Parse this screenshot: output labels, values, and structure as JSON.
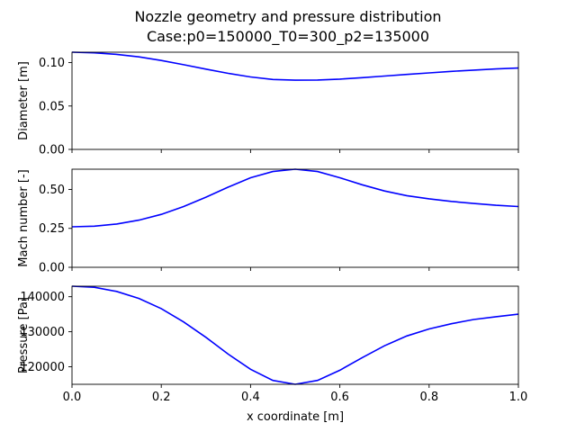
{
  "figure": {
    "title_line1": "Nozzle geometry and pressure distribution",
    "title_line2": "Case:p0=150000_T0=300_p2=135000"
  },
  "chart_data": [
    {
      "type": "line",
      "ylabel": "Diameter [m]",
      "xlim": [
        0,
        1
      ],
      "ylim": [
        0,
        0.112
      ],
      "yticks": [
        0.0,
        0.05,
        0.1
      ],
      "ytick_labels": [
        "0.00",
        "0.05",
        "0.10"
      ],
      "line_color": "#0000ff",
      "series": [
        {
          "x": [
            0,
            0.05,
            0.1,
            0.15,
            0.2,
            0.25,
            0.3,
            0.35,
            0.4,
            0.45,
            0.5,
            0.55,
            0.6,
            0.65,
            0.7,
            0.75,
            0.8,
            0.85,
            0.9,
            0.95,
            1.0
          ],
          "values": [
            0.112,
            0.1113,
            0.1095,
            0.1066,
            0.1025,
            0.0976,
            0.0925,
            0.0876,
            0.0835,
            0.0806,
            0.0797,
            0.08,
            0.081,
            0.0826,
            0.0845,
            0.0864,
            0.0882,
            0.0899,
            0.0914,
            0.0927,
            0.0938
          ]
        }
      ]
    },
    {
      "type": "line",
      "ylabel": "Mach number [-]",
      "xlim": [
        0,
        1
      ],
      "ylim": [
        0,
        0.63
      ],
      "yticks": [
        0.0,
        0.25,
        0.5
      ],
      "ytick_labels": [
        "0.00",
        "0.25",
        "0.50"
      ],
      "line_color": "#0000ff",
      "series": [
        {
          "x": [
            0,
            0.05,
            0.1,
            0.15,
            0.2,
            0.25,
            0.3,
            0.35,
            0.4,
            0.45,
            0.5,
            0.55,
            0.6,
            0.65,
            0.7,
            0.75,
            0.8,
            0.85,
            0.9,
            0.95,
            1.0
          ],
          "values": [
            0.26,
            0.264,
            0.278,
            0.303,
            0.34,
            0.39,
            0.45,
            0.515,
            0.575,
            0.615,
            0.63,
            0.615,
            0.575,
            0.53,
            0.49,
            0.46,
            0.44,
            0.423,
            0.41,
            0.398,
            0.39
          ]
        }
      ]
    },
    {
      "type": "line",
      "ylabel": "Pressure [Pa]",
      "xlabel": "x coordinate [m]",
      "xlim": [
        0,
        1
      ],
      "ylim": [
        115000,
        143000
      ],
      "yticks": [
        120000,
        130000,
        140000
      ],
      "ytick_labels": [
        "120000",
        "130000",
        "140000"
      ],
      "xticks": [
        0,
        0.2,
        0.4,
        0.6,
        0.8,
        1.0
      ],
      "xtick_labels": [
        "0.0",
        "0.2",
        "0.4",
        "0.6",
        "0.8",
        "1.0"
      ],
      "line_color": "#0000ff",
      "series": [
        {
          "x": [
            0,
            0.05,
            0.1,
            0.15,
            0.2,
            0.25,
            0.3,
            0.35,
            0.4,
            0.45,
            0.5,
            0.55,
            0.6,
            0.65,
            0.7,
            0.75,
            0.8,
            0.85,
            0.9,
            0.95,
            1.0
          ],
          "values": [
            143000,
            142700,
            141500,
            139500,
            136600,
            132800,
            128400,
            123600,
            119300,
            116100,
            115000,
            116100,
            119000,
            122600,
            126000,
            128800,
            130800,
            132300,
            133500,
            134300,
            135000
          ]
        }
      ]
    }
  ]
}
